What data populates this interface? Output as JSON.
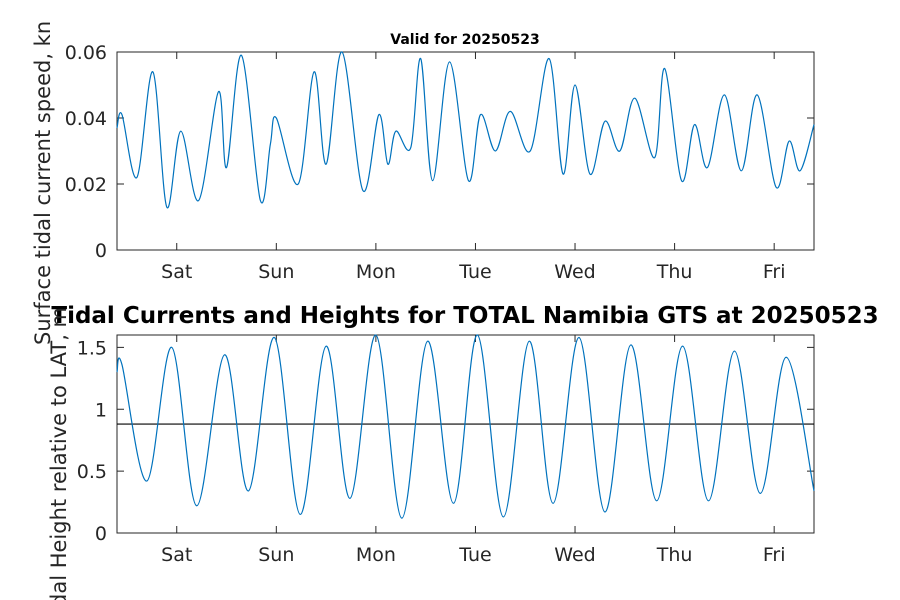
{
  "chart_data": [
    {
      "type": "line",
      "title": "Valid for 20250523",
      "ylabel": "Surface tidal current speed, kn",
      "xlabel": "",
      "x_ticks": [
        "Sat",
        "Sun",
        "Mon",
        "Tue",
        "Wed",
        "Thu",
        "Fri"
      ],
      "y_ticks": [
        "0",
        "0.02",
        "0.04",
        "0.06"
      ],
      "xlim_days": [
        -0.6,
        6.4
      ],
      "ylim": [
        0,
        0.06
      ],
      "grid": false,
      "color": "#0072bd",
      "series": [
        {
          "x": [
            -0.6,
            -0.55,
            -0.4,
            -0.24,
            -0.1,
            0.04,
            0.22,
            0.42,
            0.5,
            0.65,
            0.84,
            1.0,
            0.94,
            1.22,
            1.38,
            1.5,
            1.66,
            1.87,
            2.03,
            2.12,
            2.2,
            2.35,
            2.45,
            2.57,
            2.74,
            2.93,
            3.05,
            3.2,
            3.35,
            3.55,
            3.74,
            3.88,
            4.0,
            4.15,
            4.3,
            4.45,
            4.6,
            4.8,
            4.9,
            5.07,
            5.2,
            5.33,
            5.5,
            5.67,
            5.83,
            6.02,
            6.15,
            6.26,
            6.4
          ],
          "y": [
            0.037,
            0.041,
            0.022,
            0.054,
            0.013,
            0.036,
            0.015,
            0.048,
            0.025,
            0.059,
            0.015,
            0.04,
            0.032,
            0.02,
            0.054,
            0.026,
            0.06,
            0.018,
            0.041,
            0.026,
            0.036,
            0.031,
            0.058,
            0.021,
            0.057,
            0.021,
            0.041,
            0.03,
            0.042,
            0.03,
            0.058,
            0.023,
            0.05,
            0.023,
            0.039,
            0.03,
            0.046,
            0.028,
            0.055,
            0.021,
            0.038,
            0.025,
            0.047,
            0.024,
            0.047,
            0.019,
            0.033,
            0.024,
            0.038
          ]
        }
      ]
    },
    {
      "type": "line",
      "title": "Tidal Currents and Heights for TOTAL Namibia GTS at 20250523",
      "ylabel": "Tidal Height relative to LAT, m",
      "xlabel": "",
      "x_ticks": [
        "Sat",
        "Sun",
        "Mon",
        "Tue",
        "Wed",
        "Thu",
        "Fri"
      ],
      "y_ticks": [
        "0",
        "0.5",
        "1",
        "1.5"
      ],
      "xlim_days": [
        -0.6,
        6.4
      ],
      "ylim": [
        0,
        1.6
      ],
      "grid": false,
      "color": "#0072bd",
      "reference_line": 0.88,
      "series": [
        {
          "x": [
            -0.6,
            -0.55,
            -0.3,
            -0.05,
            0.2,
            0.48,
            0.72,
            0.98,
            1.24,
            1.5,
            1.74,
            2.0,
            2.26,
            2.52,
            2.78,
            3.02,
            3.28,
            3.54,
            3.78,
            4.04,
            4.3,
            4.56,
            4.82,
            5.08,
            5.34,
            5.6,
            5.86,
            6.12,
            6.4
          ],
          "y": [
            1.3,
            1.36,
            0.42,
            1.5,
            0.22,
            1.44,
            0.34,
            1.58,
            0.15,
            1.51,
            0.28,
            1.6,
            0.12,
            1.55,
            0.24,
            1.6,
            0.13,
            1.55,
            0.24,
            1.58,
            0.17,
            1.52,
            0.26,
            1.51,
            0.26,
            1.47,
            0.32,
            1.42,
            0.34
          ]
        }
      ]
    }
  ]
}
